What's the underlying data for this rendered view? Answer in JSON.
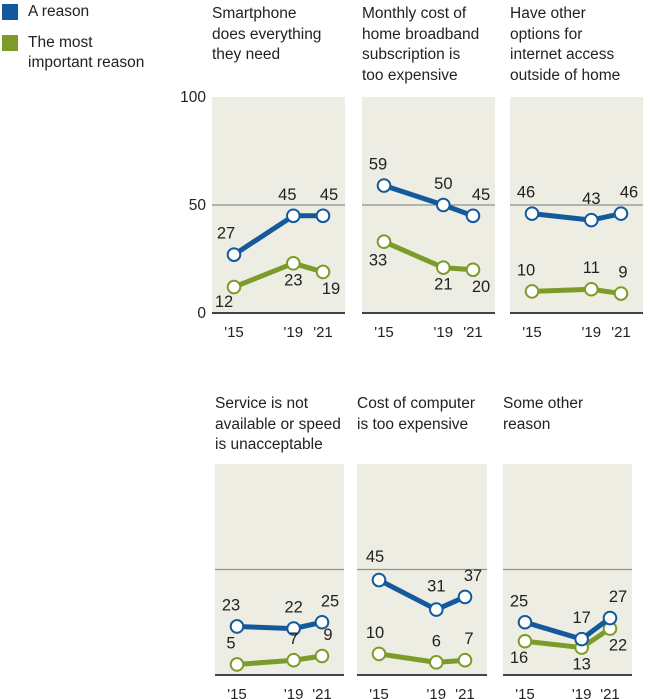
{
  "legend": [
    {
      "label": "A reason",
      "color": "#125a9c"
    },
    {
      "label": "The most important reason",
      "label_lines": [
        "The most",
        "important reason"
      ],
      "color": "#7d9b2a"
    }
  ],
  "chart_data": {
    "type": "line",
    "layout": "small-multiples",
    "x": [
      "'15",
      "'19",
      "'21"
    ],
    "x_years": [
      2015,
      2019,
      2021
    ],
    "ylim": [
      0,
      100
    ],
    "yticks": [
      "0",
      "50",
      "100"
    ],
    "gridlines": [
      50
    ],
    "series_names": [
      "A reason",
      "The most important reason"
    ],
    "colors": {
      "a_reason": "#125a9c",
      "most_important": "#7d9b2a",
      "panel_bg": "#eeede3",
      "gridline": "#8c9391",
      "baseline": "#444444"
    },
    "panels": [
      {
        "title_lines": [
          "Smartphone",
          "does everything",
          "they need"
        ],
        "series": [
          {
            "name": "A reason",
            "values": [
              27,
              45,
              45
            ]
          },
          {
            "name": "The most important reason",
            "values": [
              12,
              23,
              19
            ]
          }
        ]
      },
      {
        "title_lines": [
          "Monthly cost of",
          "home broadband",
          "subscription is",
          "too expensive"
        ],
        "series": [
          {
            "name": "A reason",
            "values": [
              59,
              50,
              45
            ]
          },
          {
            "name": "The most important reason",
            "values": [
              33,
              21,
              20
            ]
          }
        ]
      },
      {
        "title_lines": [
          "Have other",
          "options for",
          "internet access",
          "outside of home"
        ],
        "series": [
          {
            "name": "A reason",
            "values": [
              46,
              43,
              46
            ]
          },
          {
            "name": "The most important reason",
            "values": [
              10,
              11,
              9
            ]
          }
        ]
      },
      {
        "title_lines": [
          "Service is not",
          "available or speed",
          "is unacceptable"
        ],
        "series": [
          {
            "name": "A reason",
            "values": [
              23,
              22,
              25
            ]
          },
          {
            "name": "The most important reason",
            "values": [
              5,
              7,
              9
            ]
          }
        ]
      },
      {
        "title_lines": [
          "Cost of computer",
          "is too expensive"
        ],
        "series": [
          {
            "name": "A reason",
            "values": [
              45,
              31,
              37
            ]
          },
          {
            "name": "The most important reason",
            "values": [
              10,
              6,
              7
            ]
          }
        ]
      },
      {
        "title_lines": [
          "Some other",
          "reason"
        ],
        "series": [
          {
            "name": "A reason",
            "values": [
              25,
              17,
              27
            ]
          },
          {
            "name": "The most important reason",
            "values": [
              16,
              13,
              22
            ]
          }
        ]
      }
    ]
  }
}
